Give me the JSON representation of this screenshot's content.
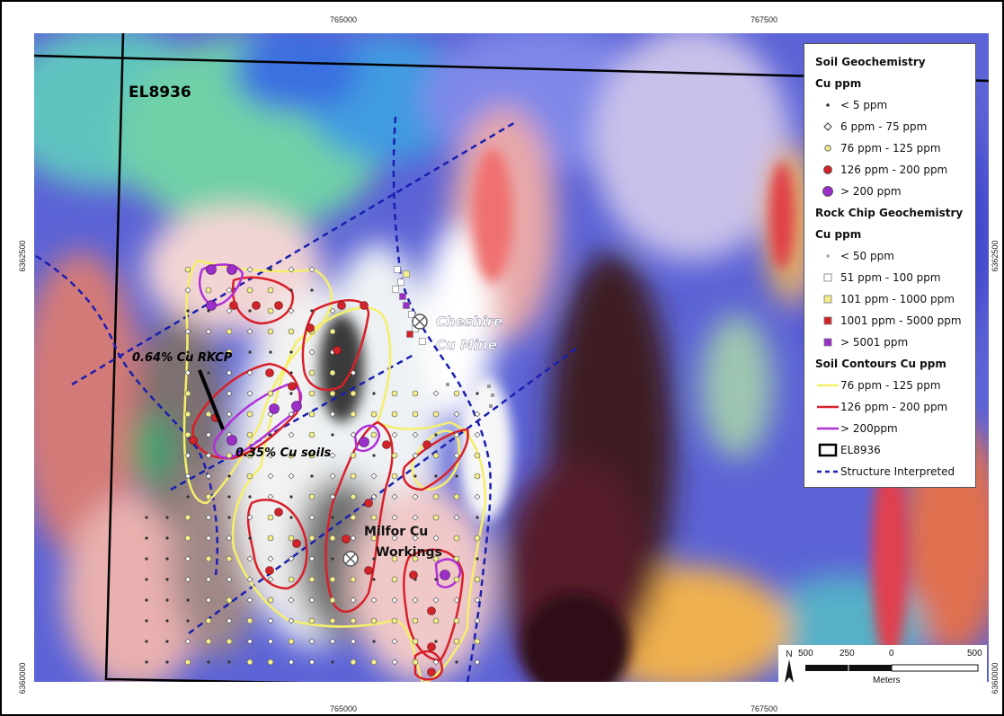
{
  "map": {
    "tenement_label": "EL8936",
    "annotations": {
      "rkcp": "0.64% Cu RKCP",
      "soils": "0.35% Cu soils",
      "cheshire_line1": "Cheshire",
      "cheshire_line2": "Cu Mine",
      "milfor_line1": "Milfor Cu",
      "milfor_line2": "Workings"
    },
    "coords": {
      "top_left": "765000",
      "top_right": "767500",
      "bottom_left": "765000",
      "bottom_right": "767500",
      "left_upper": "6362500",
      "left_lower": "6360000",
      "right_upper": "6362500",
      "right_lower": "6360000"
    }
  },
  "legend": {
    "soil_title": "Soil Geochemistry",
    "soil_units": "Cu ppm",
    "soil_items": [
      {
        "label": "< 5 ppm",
        "symbol": "dot",
        "color": "#333333"
      },
      {
        "label": "6 ppm - 75 ppm",
        "symbol": "diamond",
        "color": "#ffffff"
      },
      {
        "label": "76 ppm - 125 ppm",
        "symbol": "circle-sm",
        "color": "#f3ee8a"
      },
      {
        "label": "126 ppm - 200 ppm",
        "symbol": "circle",
        "color": "#d0242a"
      },
      {
        "label": "> 200 ppm",
        "symbol": "circle-lg",
        "color": "#9b30c8"
      }
    ],
    "rock_title": "Rock Chip Geochemistry",
    "rock_units": "Cu ppm",
    "rock_items": [
      {
        "label": "< 50 ppm",
        "symbol": "sq-xs",
        "color": "#9a9a9a"
      },
      {
        "label": "51 ppm - 100 ppm",
        "symbol": "sq",
        "color": "#ffffff"
      },
      {
        "label": "101 ppm - 1000 ppm",
        "symbol": "sq",
        "color": "#f3ee8a"
      },
      {
        "label": "1001 ppm - 5000 ppm",
        "symbol": "sq",
        "color": "#d0242a"
      },
      {
        "label": "> 5001 ppm",
        "symbol": "sq",
        "color": "#9b30c8"
      }
    ],
    "contour_title": "Soil Contours Cu ppm",
    "contour_items": [
      {
        "label": "76 ppm - 125 ppm",
        "color": "#f5ef6a"
      },
      {
        "label": "126 ppm - 200 ppm",
        "color": "#d8202a"
      },
      {
        "label": "> 200ppm",
        "color": "#b030d8"
      }
    ],
    "boundary_label": "EL8936",
    "structure_label": "Structure Interpreted"
  },
  "scale": {
    "ticks": [
      "500",
      "250",
      "0",
      "500"
    ],
    "units": "Meters",
    "north": "N"
  },
  "colors": {
    "boundary": "#000000",
    "structure": "#1a1fb0",
    "contour_yellow": "#f5ef6a",
    "contour_red": "#d8202a",
    "contour_purple": "#b030d8"
  }
}
